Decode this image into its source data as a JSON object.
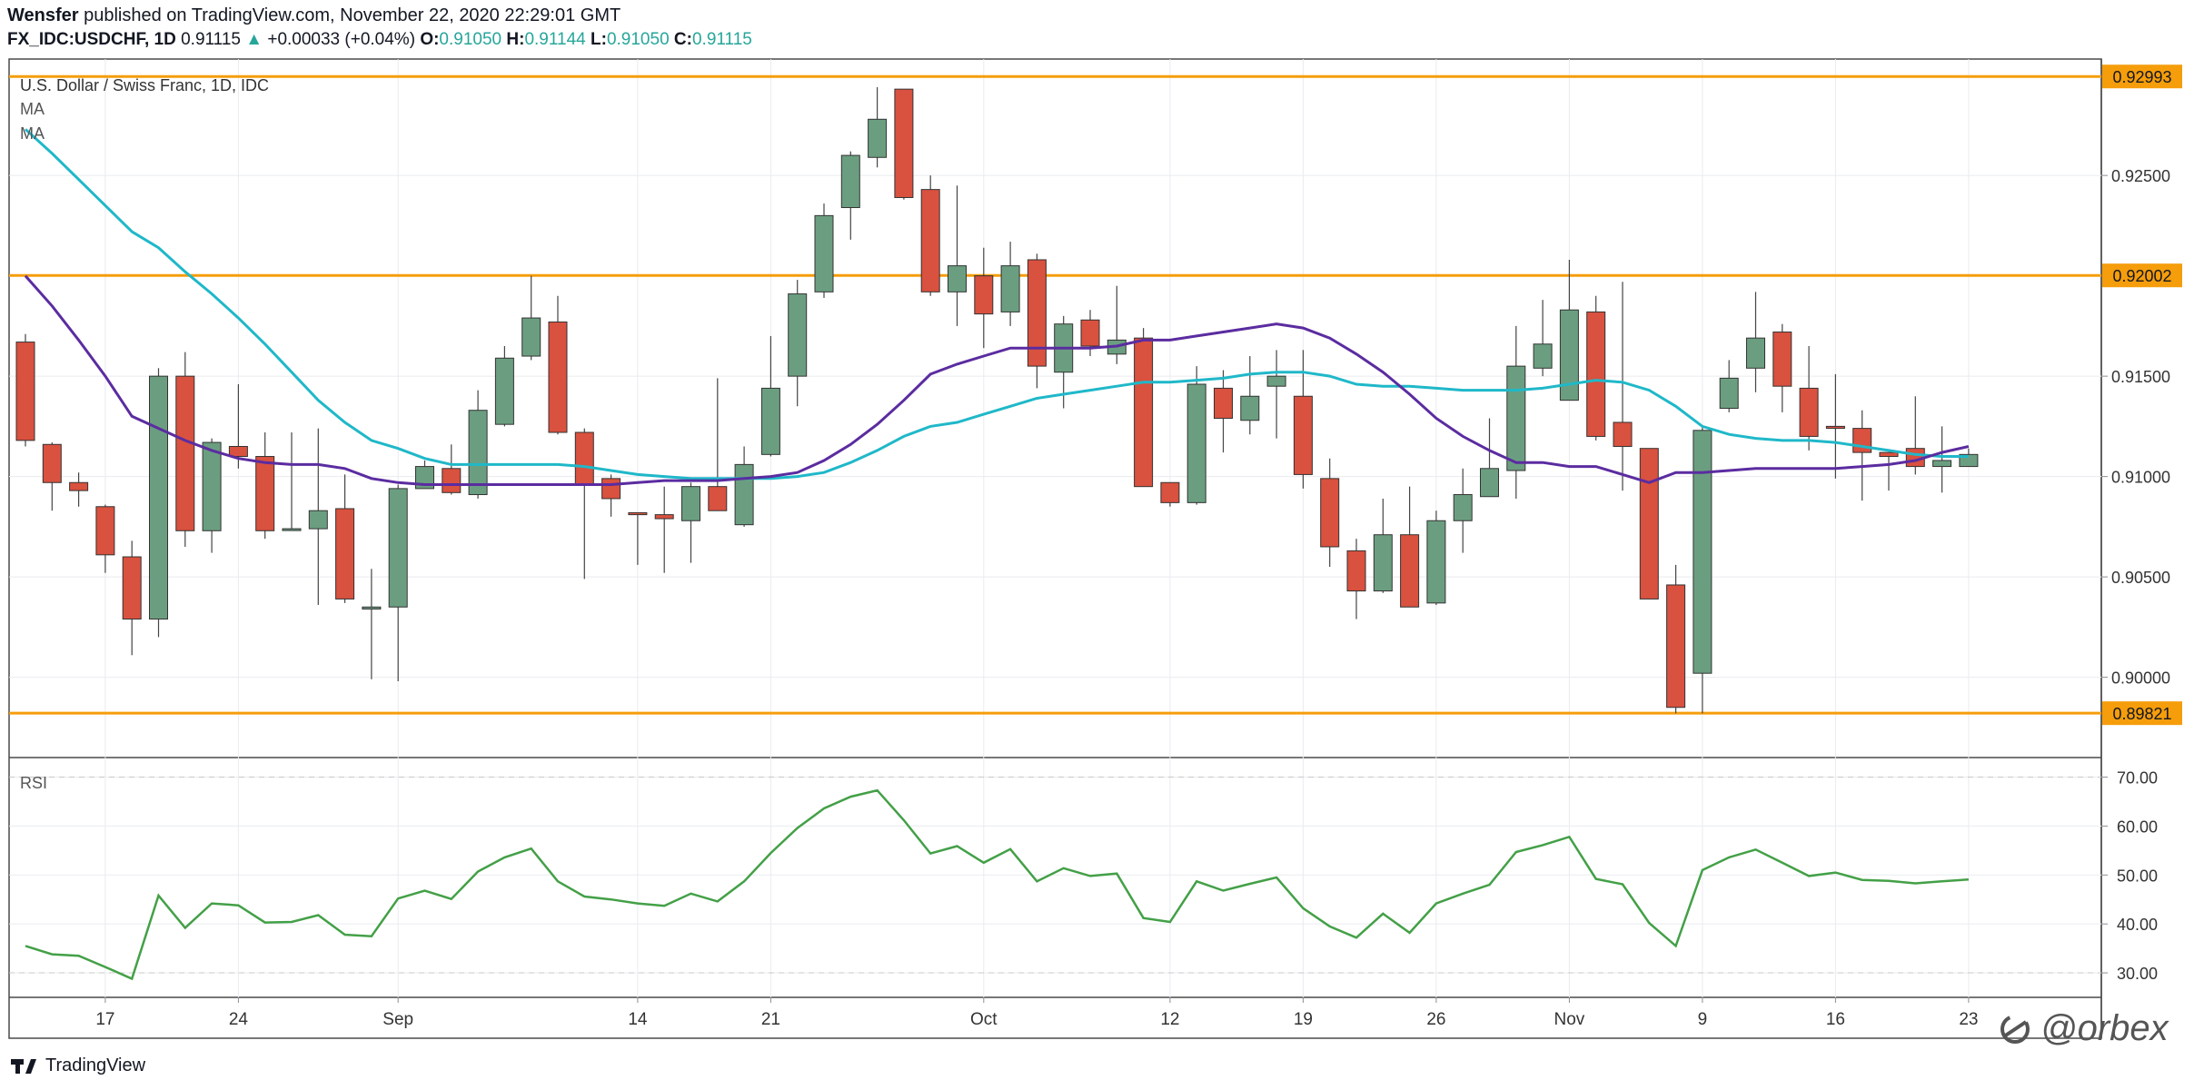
{
  "header": {
    "author": "Wensfer",
    "published_text": "published on TradingView.com, November 22, 2020 22:29:01 GMT",
    "symbol": "FX_IDC:USDCHF, 1D",
    "last": "0.91115",
    "change": "+0.00033 (+0.04%)",
    "o_label": "O:",
    "o": "0.91050",
    "h_label": "H:",
    "h": "0.91144",
    "l_label": "L:",
    "l": "0.91050",
    "c_label": "C:",
    "c": "0.91115"
  },
  "legend": {
    "title": "U.S. Dollar / Swiss Franc, 1D, IDC",
    "ma1": "MA",
    "ma2": "MA"
  },
  "rsi_label": "RSI",
  "footer": {
    "brand": "TradingView",
    "watermark": "@orbex"
  },
  "colors": {
    "up": "#6b9e80",
    "down": "#d9513f",
    "ma_fast": "#5b2ca0",
    "ma_slow": "#1fb8c9",
    "level": "#f59d0b",
    "rsi": "#43a047",
    "grid": "#e9ebef",
    "axis": "#8a8d93"
  },
  "chart_data": [
    {
      "type": "candlestick",
      "title": "U.S. Dollar / Swiss Franc, 1D, IDC",
      "ylim": [
        0.896,
        0.9308
      ],
      "y_ticks": [
        "0.90000",
        "0.90500",
        "0.91000",
        "0.91500",
        "0.92500"
      ],
      "x_ticks": [
        {
          "label": "17",
          "index": 3
        },
        {
          "label": "24",
          "index": 8
        },
        {
          "label": "Sep",
          "index": 14
        },
        {
          "label": "14",
          "index": 23
        },
        {
          "label": "21",
          "index": 28
        },
        {
          "label": "Oct",
          "index": 36
        },
        {
          "label": "12",
          "index": 43
        },
        {
          "label": "19",
          "index": 48
        },
        {
          "label": "26",
          "index": 53
        },
        {
          "label": "Nov",
          "index": 58
        },
        {
          "label": "9",
          "index": 63
        },
        {
          "label": "16",
          "index": 68
        },
        {
          "label": "23",
          "index": 73
        }
      ],
      "levels": [
        "0.92993",
        "0.92002",
        "0.89821"
      ],
      "candles": [
        {
          "o": 0.9167,
          "h": 0.9171,
          "l": 0.9115,
          "c": 0.9118
        },
        {
          "o": 0.9116,
          "h": 0.9117,
          "l": 0.9083,
          "c": 0.9097
        },
        {
          "o": 0.9097,
          "h": 0.9102,
          "l": 0.9085,
          "c": 0.9093
        },
        {
          "o": 0.9085,
          "h": 0.9086,
          "l": 0.9052,
          "c": 0.9061
        },
        {
          "o": 0.906,
          "h": 0.9068,
          "l": 0.9011,
          "c": 0.9029
        },
        {
          "o": 0.9029,
          "h": 0.9154,
          "l": 0.902,
          "c": 0.915
        },
        {
          "o": 0.915,
          "h": 0.9162,
          "l": 0.9065,
          "c": 0.9073
        },
        {
          "o": 0.9073,
          "h": 0.9119,
          "l": 0.9062,
          "c": 0.9117
        },
        {
          "o": 0.9115,
          "h": 0.9146,
          "l": 0.9104,
          "c": 0.911
        },
        {
          "o": 0.911,
          "h": 0.9122,
          "l": 0.9069,
          "c": 0.9073
        },
        {
          "o": 0.9074,
          "h": 0.9122,
          "l": 0.9073,
          "c": 0.9074
        },
        {
          "o": 0.9074,
          "h": 0.9124,
          "l": 0.9036,
          "c": 0.9083
        },
        {
          "o": 0.9084,
          "h": 0.9101,
          "l": 0.9037,
          "c": 0.9039
        },
        {
          "o": 0.9034,
          "h": 0.9054,
          "l": 0.8999,
          "c": 0.9035
        },
        {
          "o": 0.9035,
          "h": 0.9096,
          "l": 0.8998,
          "c": 0.9094
        },
        {
          "o": 0.9094,
          "h": 0.9108,
          "l": 0.9095,
          "c": 0.9105
        },
        {
          "o": 0.9104,
          "h": 0.9116,
          "l": 0.9091,
          "c": 0.9092
        },
        {
          "o": 0.9091,
          "h": 0.9143,
          "l": 0.9089,
          "c": 0.9133
        },
        {
          "o": 0.9126,
          "h": 0.9165,
          "l": 0.9125,
          "c": 0.9159
        },
        {
          "o": 0.916,
          "h": 0.92,
          "l": 0.9158,
          "c": 0.9179
        },
        {
          "o": 0.9177,
          "h": 0.919,
          "l": 0.9121,
          "c": 0.9122
        },
        {
          "o": 0.9122,
          "h": 0.9124,
          "l": 0.9049,
          "c": 0.9096
        },
        {
          "o": 0.9099,
          "h": 0.9101,
          "l": 0.908,
          "c": 0.9089
        },
        {
          "o": 0.9082,
          "h": 0.9082,
          "l": 0.9056,
          "c": 0.9081
        },
        {
          "o": 0.9081,
          "h": 0.9095,
          "l": 0.9052,
          "c": 0.9079
        },
        {
          "o": 0.9078,
          "h": 0.9097,
          "l": 0.9057,
          "c": 0.9095
        },
        {
          "o": 0.9095,
          "h": 0.9149,
          "l": 0.9084,
          "c": 0.9083
        },
        {
          "o": 0.9076,
          "h": 0.9115,
          "l": 0.9075,
          "c": 0.9106
        },
        {
          "o": 0.9111,
          "h": 0.917,
          "l": 0.911,
          "c": 0.9144
        },
        {
          "o": 0.915,
          "h": 0.9198,
          "l": 0.9135,
          "c": 0.9191
        },
        {
          "o": 0.9192,
          "h": 0.9236,
          "l": 0.9189,
          "c": 0.923
        },
        {
          "o": 0.9234,
          "h": 0.9262,
          "l": 0.9218,
          "c": 0.926
        },
        {
          "o": 0.9259,
          "h": 0.9294,
          "l": 0.9254,
          "c": 0.9278
        },
        {
          "o": 0.9293,
          "h": 0.9293,
          "l": 0.9238,
          "c": 0.9239
        },
        {
          "o": 0.9243,
          "h": 0.925,
          "l": 0.919,
          "c": 0.9192
        },
        {
          "o": 0.9192,
          "h": 0.9245,
          "l": 0.9175,
          "c": 0.9205
        },
        {
          "o": 0.92,
          "h": 0.9214,
          "l": 0.9164,
          "c": 0.9181
        },
        {
          "o": 0.9182,
          "h": 0.9217,
          "l": 0.9175,
          "c": 0.9205
        },
        {
          "o": 0.9208,
          "h": 0.9211,
          "l": 0.9144,
          "c": 0.9155
        },
        {
          "o": 0.9152,
          "h": 0.918,
          "l": 0.9134,
          "c": 0.9176
        },
        {
          "o": 0.9178,
          "h": 0.9183,
          "l": 0.916,
          "c": 0.9165
        },
        {
          "o": 0.9161,
          "h": 0.9195,
          "l": 0.9156,
          "c": 0.9168
        },
        {
          "o": 0.9169,
          "h": 0.9174,
          "l": 0.9095,
          "c": 0.9095
        },
        {
          "o": 0.9097,
          "h": 0.9097,
          "l": 0.9085,
          "c": 0.9087
        },
        {
          "o": 0.9087,
          "h": 0.9155,
          "l": 0.9086,
          "c": 0.9146
        },
        {
          "o": 0.9144,
          "h": 0.9153,
          "l": 0.9112,
          "c": 0.9129
        },
        {
          "o": 0.9128,
          "h": 0.916,
          "l": 0.9121,
          "c": 0.914
        },
        {
          "o": 0.9145,
          "h": 0.9163,
          "l": 0.9119,
          "c": 0.915
        },
        {
          "o": 0.914,
          "h": 0.9163,
          "l": 0.9094,
          "c": 0.9101
        },
        {
          "o": 0.9099,
          "h": 0.9109,
          "l": 0.9055,
          "c": 0.9065
        },
        {
          "o": 0.9063,
          "h": 0.9069,
          "l": 0.9029,
          "c": 0.9043
        },
        {
          "o": 0.9043,
          "h": 0.9089,
          "l": 0.9042,
          "c": 0.9071
        },
        {
          "o": 0.9071,
          "h": 0.9095,
          "l": 0.9035,
          "c": 0.9035
        },
        {
          "o": 0.9037,
          "h": 0.9083,
          "l": 0.9036,
          "c": 0.9078
        },
        {
          "o": 0.9078,
          "h": 0.9104,
          "l": 0.9062,
          "c": 0.9091
        },
        {
          "o": 0.909,
          "h": 0.9129,
          "l": 0.909,
          "c": 0.9104
        },
        {
          "o": 0.9103,
          "h": 0.9175,
          "l": 0.9089,
          "c": 0.9155
        },
        {
          "o": 0.9154,
          "h": 0.9188,
          "l": 0.915,
          "c": 0.9166
        },
        {
          "o": 0.9138,
          "h": 0.9208,
          "l": 0.9138,
          "c": 0.9183
        },
        {
          "o": 0.9182,
          "h": 0.919,
          "l": 0.9118,
          "c": 0.912
        },
        {
          "o": 0.9127,
          "h": 0.9197,
          "l": 0.9093,
          "c": 0.9115
        },
        {
          "o": 0.9114,
          "h": 0.9114,
          "l": 0.9039,
          "c": 0.9039
        },
        {
          "o": 0.9046,
          "h": 0.9056,
          "l": 0.8982,
          "c": 0.8985
        },
        {
          "o": 0.9002,
          "h": 0.9125,
          "l": 0.8982,
          "c": 0.9123
        },
        {
          "o": 0.9134,
          "h": 0.9158,
          "l": 0.9132,
          "c": 0.9149
        },
        {
          "o": 0.9154,
          "h": 0.9192,
          "l": 0.9142,
          "c": 0.9169
        },
        {
          "o": 0.9172,
          "h": 0.9176,
          "l": 0.9132,
          "c": 0.9145
        },
        {
          "o": 0.9144,
          "h": 0.9165,
          "l": 0.9113,
          "c": 0.912
        },
        {
          "o": 0.9125,
          "h": 0.9151,
          "l": 0.9099,
          "c": 0.9124
        },
        {
          "o": 0.9124,
          "h": 0.9133,
          "l": 0.9088,
          "c": 0.9112
        },
        {
          "o": 0.9112,
          "h": 0.911,
          "l": 0.9093,
          "c": 0.911
        },
        {
          "o": 0.9114,
          "h": 0.914,
          "l": 0.9101,
          "c": 0.9105
        },
        {
          "o": 0.9105,
          "h": 0.9125,
          "l": 0.9092,
          "c": 0.9108
        },
        {
          "o": 0.9105,
          "h": 0.9114,
          "l": 0.9105,
          "c": 0.9111
        }
      ],
      "ma_fast": [
        0.92,
        0.9185,
        0.9168,
        0.915,
        0.913,
        0.9124,
        0.9118,
        0.9113,
        0.9109,
        0.9107,
        0.9106,
        0.9106,
        0.9104,
        0.9099,
        0.9097,
        0.9096,
        0.9096,
        0.9096,
        0.9096,
        0.9096,
        0.9096,
        0.9096,
        0.9096,
        0.9097,
        0.9098,
        0.9098,
        0.9098,
        0.9099,
        0.91,
        0.9102,
        0.9108,
        0.9116,
        0.9126,
        0.9138,
        0.9151,
        0.9156,
        0.916,
        0.9164,
        0.9164,
        0.9164,
        0.9164,
        0.9165,
        0.9168,
        0.9168,
        0.917,
        0.9172,
        0.9174,
        0.9176,
        0.9174,
        0.9169,
        0.9161,
        0.9152,
        0.9141,
        0.9129,
        0.912,
        0.9113,
        0.9107,
        0.9107,
        0.9105,
        0.9105,
        0.9101,
        0.9097,
        0.9102,
        0.9102,
        0.9103,
        0.9104,
        0.9104,
        0.9104,
        0.9104,
        0.9105,
        0.9106,
        0.9108,
        0.9112,
        0.9115
      ],
      "ma_slow": [
        0.9273,
        0.9261,
        0.9248,
        0.9235,
        0.9222,
        0.9214,
        0.9202,
        0.9191,
        0.9179,
        0.9166,
        0.9152,
        0.9138,
        0.9127,
        0.9118,
        0.9114,
        0.9109,
        0.9106,
        0.9106,
        0.9106,
        0.9106,
        0.9106,
        0.9105,
        0.9103,
        0.9101,
        0.91,
        0.9099,
        0.9099,
        0.9099,
        0.9099,
        0.91,
        0.9102,
        0.9107,
        0.9113,
        0.912,
        0.9125,
        0.9127,
        0.9131,
        0.9135,
        0.9139,
        0.9141,
        0.9143,
        0.9145,
        0.9147,
        0.9147,
        0.9148,
        0.9149,
        0.9151,
        0.9152,
        0.9152,
        0.915,
        0.9146,
        0.9145,
        0.9145,
        0.9144,
        0.9143,
        0.9143,
        0.9143,
        0.9144,
        0.9146,
        0.9148,
        0.9147,
        0.9143,
        0.9135,
        0.9125,
        0.9121,
        0.9119,
        0.9118,
        0.9118,
        0.9117,
        0.9115,
        0.9113,
        0.9111,
        0.911,
        0.911
      ]
    },
    {
      "type": "line",
      "title": "RSI",
      "ylim": [
        25,
        74
      ],
      "y_ticks": [
        "70.00",
        "60.00",
        "50.00",
        "40.00",
        "30.00"
      ],
      "values": [
        35.5,
        33.8,
        33.5,
        31.2,
        28.8,
        45.8,
        39.2,
        44.2,
        43.8,
        40.3,
        40.4,
        41.8,
        37.8,
        37.5,
        45.2,
        46.8,
        45.1,
        50.7,
        53.6,
        55.4,
        48.7,
        45.6,
        45.0,
        44.2,
        43.7,
        46.2,
        44.6,
        48.7,
        54.5,
        59.6,
        63.6,
        66.0,
        67.3,
        61.2,
        54.4,
        55.9,
        52.5,
        55.3,
        48.7,
        51.4,
        49.8,
        50.3,
        41.2,
        40.4,
        48.7,
        46.8,
        48.2,
        49.5,
        43.2,
        39.5,
        37.2,
        42.1,
        38.2,
        44.2,
        46.2,
        48.0,
        54.7,
        56.1,
        57.8,
        49.2,
        48.1,
        40.2,
        35.5,
        51.0,
        53.6,
        55.2,
        52.5,
        49.8,
        50.5,
        49.0,
        48.8,
        48.3,
        48.7,
        49.1
      ]
    }
  ]
}
